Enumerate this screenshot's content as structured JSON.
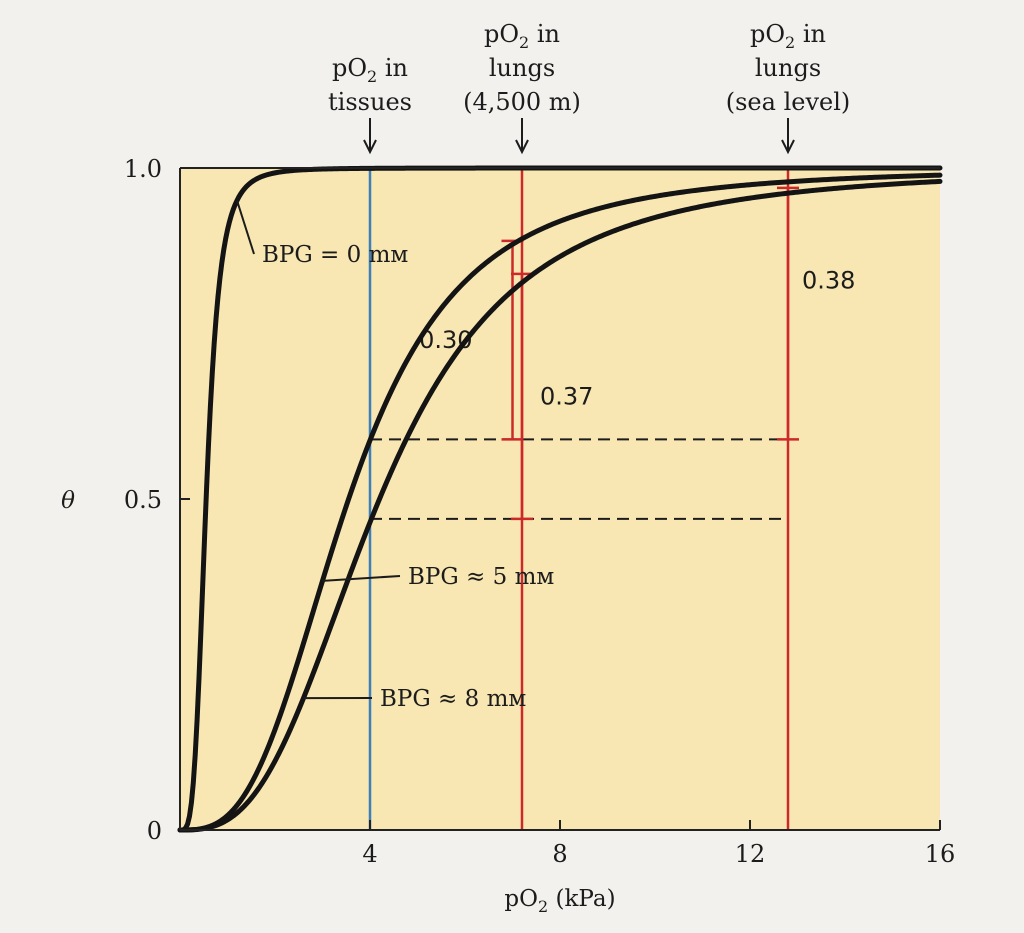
{
  "chart_data": {
    "type": "line",
    "xlabel": {
      "base": "pO",
      "sub": "2",
      "rest": " (kPa)"
    },
    "ylabel": "θ",
    "xlim": [
      0,
      16
    ],
    "ylim": [
      0,
      1
    ],
    "x_ticks": [
      {
        "value": 4,
        "label": "4"
      },
      {
        "value": 8,
        "label": "8"
      },
      {
        "value": 12,
        "label": "12"
      },
      {
        "value": 16,
        "label": "16"
      }
    ],
    "y_ticks": [
      {
        "value": 0,
        "label": "0"
      },
      {
        "value": 0.5,
        "label": "0.5"
      },
      {
        "value": 1,
        "label": "1.0"
      }
    ],
    "series": [
      {
        "name": "BPG = 0 mM",
        "label_text": "BPG = 0 mм",
        "p50_kPa": 0.55,
        "hill_n": 3.8,
        "x": [
          0,
          0.5,
          1,
          1.5,
          2,
          3,
          4,
          6,
          8,
          12,
          16
        ],
        "y": [
          0,
          0.41,
          0.9,
          0.98,
          0.993,
          0.998,
          0.999,
          1.0,
          1.0,
          1.0,
          1.0
        ]
      },
      {
        "name": "BPG ≈ 5 mM",
        "label_text": "BPG ≈ 5 mм",
        "p50_kPa": 3.55,
        "hill_n": 3.0,
        "x": [
          0,
          1,
          2,
          3,
          4,
          5,
          6,
          7,
          8,
          10,
          12,
          16
        ],
        "y": [
          0,
          0.02,
          0.16,
          0.37,
          0.59,
          0.74,
          0.84,
          0.89,
          0.92,
          0.96,
          0.975,
          0.99
        ]
      },
      {
        "name": "BPG ≈ 8 mM",
        "label_text": "BPG ≈ 8 mм",
        "p50_kPa": 4.2,
        "hill_n": 2.9,
        "x": [
          0,
          1,
          2,
          3,
          4,
          5,
          6,
          7,
          8,
          10,
          12,
          16
        ],
        "y": [
          0,
          0.02,
          0.12,
          0.29,
          0.47,
          0.62,
          0.74,
          0.83,
          0.87,
          0.93,
          0.96,
          0.985
        ]
      }
    ],
    "vertical_markers": [
      {
        "x": 4.0,
        "color": "#3d7fb8",
        "label_lines": [
          "pO₂ in",
          "tissues"
        ]
      },
      {
        "x": 7.2,
        "color": "#cc2a2a",
        "label_lines": [
          "pO₂ in",
          "lungs",
          "(4,500 m)"
        ]
      },
      {
        "x": 12.8,
        "color": "#cc2a2a",
        "label_lines": [
          "pO₂ in",
          "lungs",
          "(sea level)"
        ]
      }
    ],
    "dashed_lines": [
      {
        "y": 0.59,
        "x_from": 4.0,
        "x_to": 12.8
      },
      {
        "y": 0.47,
        "x_from": 4.0,
        "x_to": 12.8
      }
    ],
    "delta_annotations": [
      {
        "label": "0.30",
        "x": 7.0,
        "y_from": 0.59,
        "y_to": 0.89
      },
      {
        "label": "0.37",
        "x": 7.2,
        "y_from": 0.47,
        "y_to": 0.84
      },
      {
        "label": "0.38",
        "x": 12.8,
        "y_from": 0.59,
        "y_to": 0.97
      }
    ]
  },
  "colors": {
    "plot_background": "#f8e7b2",
    "curve": "#141414",
    "tissue_marker": "#3d7fb8",
    "lung_marker": "#cc2a2a"
  }
}
